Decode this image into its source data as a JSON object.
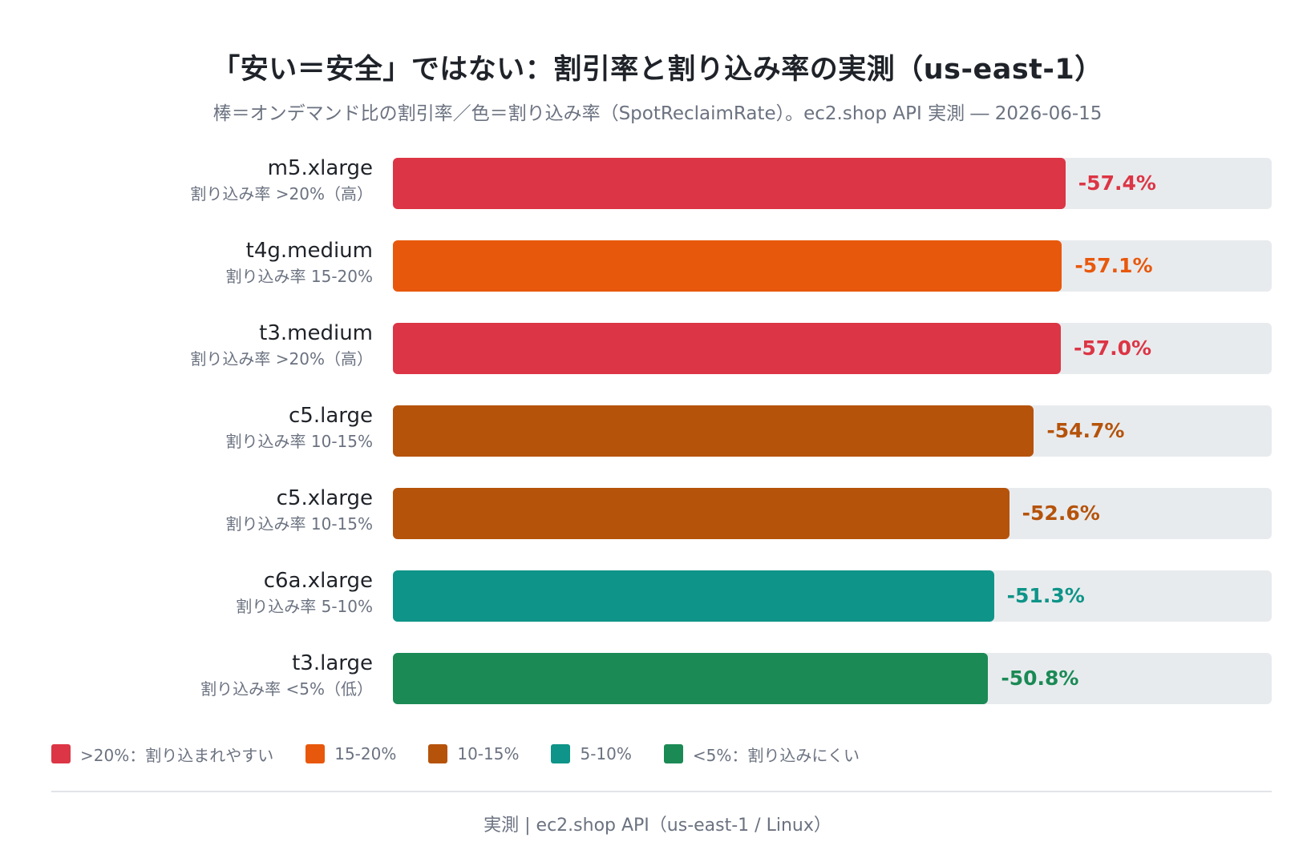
{
  "chart_data": {
    "type": "bar",
    "orientation": "horizontal",
    "title": "「安い＝安全」ではない：割引率と割り込み率の実測（us-east-1）",
    "subtitle": "棒＝オンデマンド比の割引率／色＝割り込み率（SpotReclaimRate）。ec2.shop API 実測 ― 2026-06-15",
    "xlim": [
      0,
      75
    ],
    "grid": false,
    "legend_position": "bottom-left",
    "categories": [
      "m5.xlarge",
      "t4g.medium",
      "t3.medium",
      "c5.large",
      "c5.xlarge",
      "c6a.xlarge",
      "t3.large"
    ],
    "rate_labels": [
      "割り込み率 >20%（高）",
      "割り込み率 15-20%",
      "割り込み率 >20%（高）",
      "割り込み率 10-15%",
      "割り込み率 10-15%",
      "割り込み率 5-10%",
      "割り込み率 <5%（低）"
    ],
    "values": [
      -57.4,
      -57.1,
      -57.0,
      -54.7,
      -52.6,
      -51.3,
      -50.8
    ],
    "value_labels": [
      "-57.4%",
      "-57.1%",
      "-57.0%",
      "-54.7%",
      "-52.6%",
      "-51.3%",
      "-50.8%"
    ],
    "colors": [
      "#dc3545",
      "#e8580c",
      "#dc3545",
      "#b5530b",
      "#b5530b",
      "#0e9488",
      "#1b8a55"
    ],
    "legend": [
      {
        "label": ">20%：割り込まれやすい",
        "color": "#dc3545"
      },
      {
        "label": "15-20%",
        "color": "#e8580c"
      },
      {
        "label": "10-15%",
        "color": "#b5530b"
      },
      {
        "label": "5-10%",
        "color": "#0e9488"
      },
      {
        "label": "<5%：割り込みにくい",
        "color": "#1b8a55"
      }
    ]
  },
  "footer": "実測 | ec2.shop API（us-east-1 / Linux）"
}
